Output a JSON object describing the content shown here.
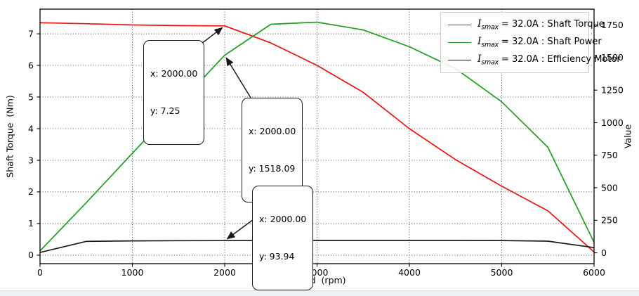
{
  "figure": {
    "xlabel": "Speed  (rpm)",
    "ylabel_left": "Shaft Torque  (Nm)",
    "ylabel_right": "Value",
    "background": "#ffffff",
    "spine_color": "#000000",
    "grid_style": "dotted"
  },
  "legend": {
    "position": "upper right",
    "items": [
      {
        "var": "I",
        "sub": "smax",
        "rest": " = 32.0A : Shaft Torque",
        "color": "#ee1111"
      },
      {
        "var": "I",
        "sub": "smax",
        "rest": " = 32.0A : Shaft Power",
        "color": "#1f9e1f"
      },
      {
        "var": "I",
        "sub": "smax",
        "rest": " = 32.0A : Efficiency Motor",
        "color": "#1a1a1a"
      }
    ]
  },
  "chart_data": {
    "type": "line",
    "title": "",
    "xlabel": "Speed (rpm)",
    "ylabel_left": "Shaft Torque (Nm)",
    "ylabel_right": "Value",
    "xlim": [
      0,
      6000
    ],
    "ylim_left": [
      -0.27,
      7.78
    ],
    "ylim_right": [
      -83,
      1872
    ],
    "x_ticks": [
      0,
      1000,
      2000,
      3000,
      4000,
      5000,
      6000
    ],
    "y_ticks_left": [
      0,
      1,
      2,
      3,
      4,
      5,
      6,
      7
    ],
    "y_ticks_right": [
      0,
      250,
      500,
      750,
      1000,
      1250,
      1500,
      1750
    ],
    "grid": true,
    "legend_position": "upper right",
    "x": [
      0,
      500,
      1000,
      1500,
      2000,
      2500,
      3000,
      3500,
      4000,
      4500,
      5000,
      5500,
      6000
    ],
    "series": [
      {
        "name": "I_smax = 32.0A : Shaft Torque",
        "axis": "left",
        "color": "#ee1111",
        "values": [
          7.35,
          7.32,
          7.28,
          7.26,
          7.25,
          6.71,
          6.0,
          5.15,
          4.0,
          3.02,
          2.18,
          1.4,
          0.1
        ]
      },
      {
        "name": "I_smax = 32.0A : Shaft Power",
        "axis": "right",
        "color": "#1f9e1f",
        "values": [
          15,
          385,
          765,
          1140,
          1518.09,
          1756,
          1772,
          1712,
          1583,
          1415,
          1160,
          810,
          80
        ]
      },
      {
        "name": "I_smax = 32.0A : Efficiency Motor",
        "axis": "right",
        "color": "#1a1a1a",
        "values": [
          3,
          88,
          92,
          93.5,
          93.94,
          94.5,
          95,
          95.2,
          95.2,
          95,
          94.5,
          90,
          40
        ]
      }
    ],
    "annotations": [
      {
        "x": 2000,
        "y": 7.25,
        "axis": "left",
        "line1": "x: 2000.00",
        "line2": "y: 7.25"
      },
      {
        "x": 2000,
        "y": 1518.09,
        "axis": "right",
        "line1": "x: 2000.00",
        "line2": "y: 1518.09"
      },
      {
        "x": 2000,
        "y": 93.94,
        "axis": "right",
        "line1": "x: 2000.00",
        "line2": "y: 93.94"
      }
    ]
  }
}
